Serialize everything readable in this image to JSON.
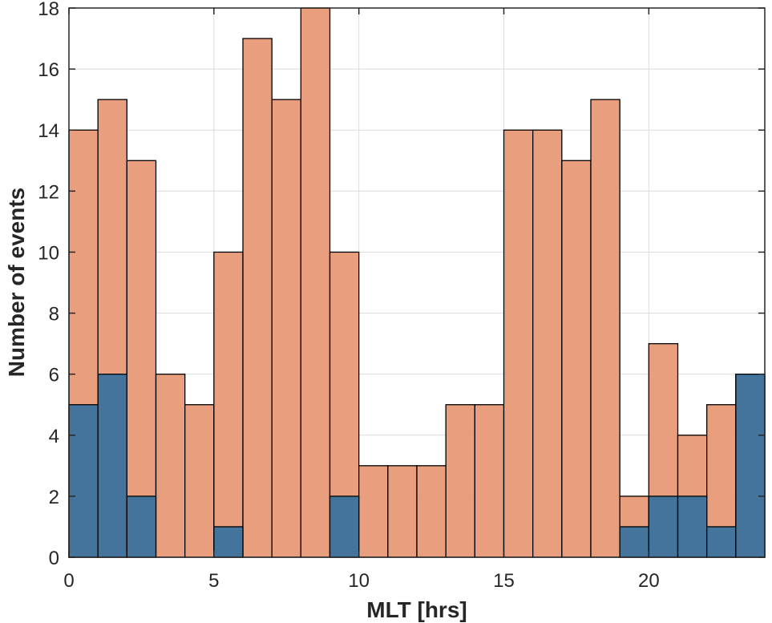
{
  "chart_data": {
    "type": "bar",
    "subtype": "histogram-overlay",
    "title": "",
    "xlabel": "MLT [hrs]",
    "ylabel": "Number of events",
    "xlim": [
      0,
      24
    ],
    "ylim": [
      0,
      18
    ],
    "grid": true,
    "bin_width": 1,
    "x_bin_starts": [
      0,
      1,
      2,
      3,
      4,
      5,
      6,
      7,
      8,
      9,
      10,
      11,
      12,
      13,
      14,
      15,
      16,
      17,
      18,
      19,
      20,
      21,
      22,
      23
    ],
    "series": [
      {
        "name": "series-orange",
        "color": "#E89A76",
        "values": [
          14,
          15,
          13,
          6,
          5,
          10,
          17,
          15,
          18,
          10,
          3,
          3,
          3,
          5,
          5,
          14,
          14,
          13,
          15,
          2,
          7,
          4,
          5,
          6
        ]
      },
      {
        "name": "series-blue",
        "color": "#44749C",
        "values": [
          5,
          6,
          2,
          0,
          0,
          1,
          0,
          0,
          0,
          2,
          0,
          0,
          0,
          0,
          0,
          0,
          0,
          0,
          0,
          1,
          2,
          2,
          1,
          6
        ]
      }
    ],
    "xticks": [
      {
        "value": 0,
        "label": "0"
      },
      {
        "value": 5,
        "label": "5"
      },
      {
        "value": 10,
        "label": "10"
      },
      {
        "value": 15,
        "label": "15"
      },
      {
        "value": 20,
        "label": "20"
      }
    ],
    "yticks": [
      {
        "value": 0,
        "label": "0"
      },
      {
        "value": 2,
        "label": "2"
      },
      {
        "value": 4,
        "label": "4"
      },
      {
        "value": 6,
        "label": "6"
      },
      {
        "value": 8,
        "label": "8"
      },
      {
        "value": 10,
        "label": "10"
      },
      {
        "value": 12,
        "label": "12"
      },
      {
        "value": 14,
        "label": "14"
      },
      {
        "value": 16,
        "label": "16"
      },
      {
        "value": 18,
        "label": "18"
      }
    ]
  }
}
